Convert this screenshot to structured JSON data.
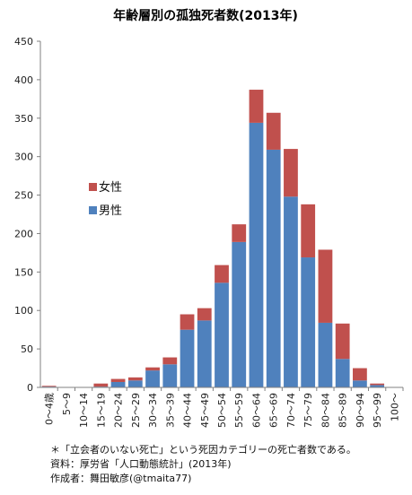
{
  "chart_data": {
    "type": "bar",
    "stacked": true,
    "title": "年齢層別の孤独死者数(2013年)",
    "ylim": [
      0,
      450
    ],
    "yticks": [
      0,
      50,
      100,
      150,
      200,
      250,
      300,
      350,
      400,
      450
    ],
    "grid": false,
    "legend_position": "left-middle",
    "categories": [
      "0～4歳",
      "5～9",
      "10～14",
      "15～19",
      "20～24",
      "25～29",
      "30～34",
      "35～39",
      "40～44",
      "45～49",
      "50～54",
      "55～59",
      "60～64",
      "65～69",
      "70～74",
      "75～79",
      "80～84",
      "85～89",
      "90～94",
      "95～99",
      "100～"
    ],
    "series": [
      {
        "name": "男性",
        "color": "#4f81bd",
        "values": [
          1,
          0,
          0,
          1,
          7,
          9,
          22,
          30,
          75,
          87,
          136,
          189,
          344,
          309,
          248,
          169,
          84,
          37,
          9,
          3,
          0
        ]
      },
      {
        "name": "女性",
        "color": "#c0504d",
        "values": [
          1,
          0,
          0,
          4,
          4,
          4,
          4,
          9,
          20,
          16,
          23,
          23,
          43,
          48,
          62,
          69,
          95,
          46,
          16,
          2,
          0
        ]
      }
    ]
  },
  "notes": {
    "line1": "＊「立会者のいない死亡」という死因カテゴリーの死亡者数である。",
    "line2": "資料：厚労省「人口動態統計」(2013年)",
    "line3": "作成者：舞田敏彦(@tmaita77)"
  }
}
